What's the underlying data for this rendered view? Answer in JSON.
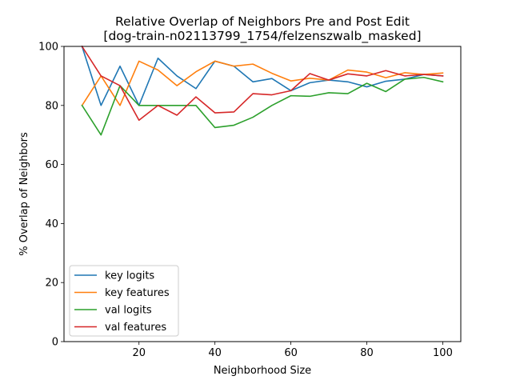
{
  "chart_data": {
    "type": "line",
    "title": "Relative Overlap of Neighbors Pre and Post Edit",
    "subtitle": "[dog-train-n02113799_1754/felzenszwalb_masked]",
    "xlabel": "Neighborhood Size",
    "ylabel": "% Overlap of Neighbors",
    "xlim": [
      0.25,
      104.75
    ],
    "ylim": [
      0,
      100
    ],
    "xticks": [
      20,
      40,
      60,
      80,
      100
    ],
    "yticks": [
      0,
      20,
      40,
      60,
      80,
      100
    ],
    "grid": false,
    "legend_position": "lower-left",
    "x": [
      5,
      10,
      15,
      20,
      25,
      30,
      35,
      40,
      45,
      50,
      55,
      60,
      65,
      70,
      75,
      80,
      85,
      90,
      95,
      100
    ],
    "series": [
      {
        "name": "key logits",
        "color": "#1f77b4",
        "values": [
          100,
          80,
          93.3,
          80,
          96,
          90,
          85.7,
          95,
          93.3,
          88,
          89.1,
          85,
          87.7,
          88.6,
          88,
          86.3,
          88.2,
          88.9,
          90.5,
          90
        ]
      },
      {
        "name": "key features",
        "color": "#ff7f0e",
        "values": [
          80,
          90,
          80,
          95,
          92,
          86.7,
          91.4,
          95,
          93.3,
          94,
          90.9,
          88.3,
          89.2,
          88.6,
          92,
          91.3,
          89.4,
          91.1,
          90.5,
          91
        ]
      },
      {
        "name": "val logits",
        "color": "#2ca02c",
        "values": [
          80,
          70,
          86.7,
          80,
          80,
          80,
          80,
          72.5,
          73.3,
          76,
          80,
          83.3,
          83.1,
          84.3,
          84,
          87.5,
          84.7,
          88.9,
          89.5,
          88
        ]
      },
      {
        "name": "val features",
        "color": "#d62728",
        "values": [
          100,
          90,
          86.7,
          75,
          80,
          76.7,
          82.9,
          77.5,
          77.8,
          84,
          83.6,
          85,
          90.8,
          88.6,
          90.7,
          90,
          91.8,
          90,
          90.5,
          90
        ]
      }
    ]
  }
}
